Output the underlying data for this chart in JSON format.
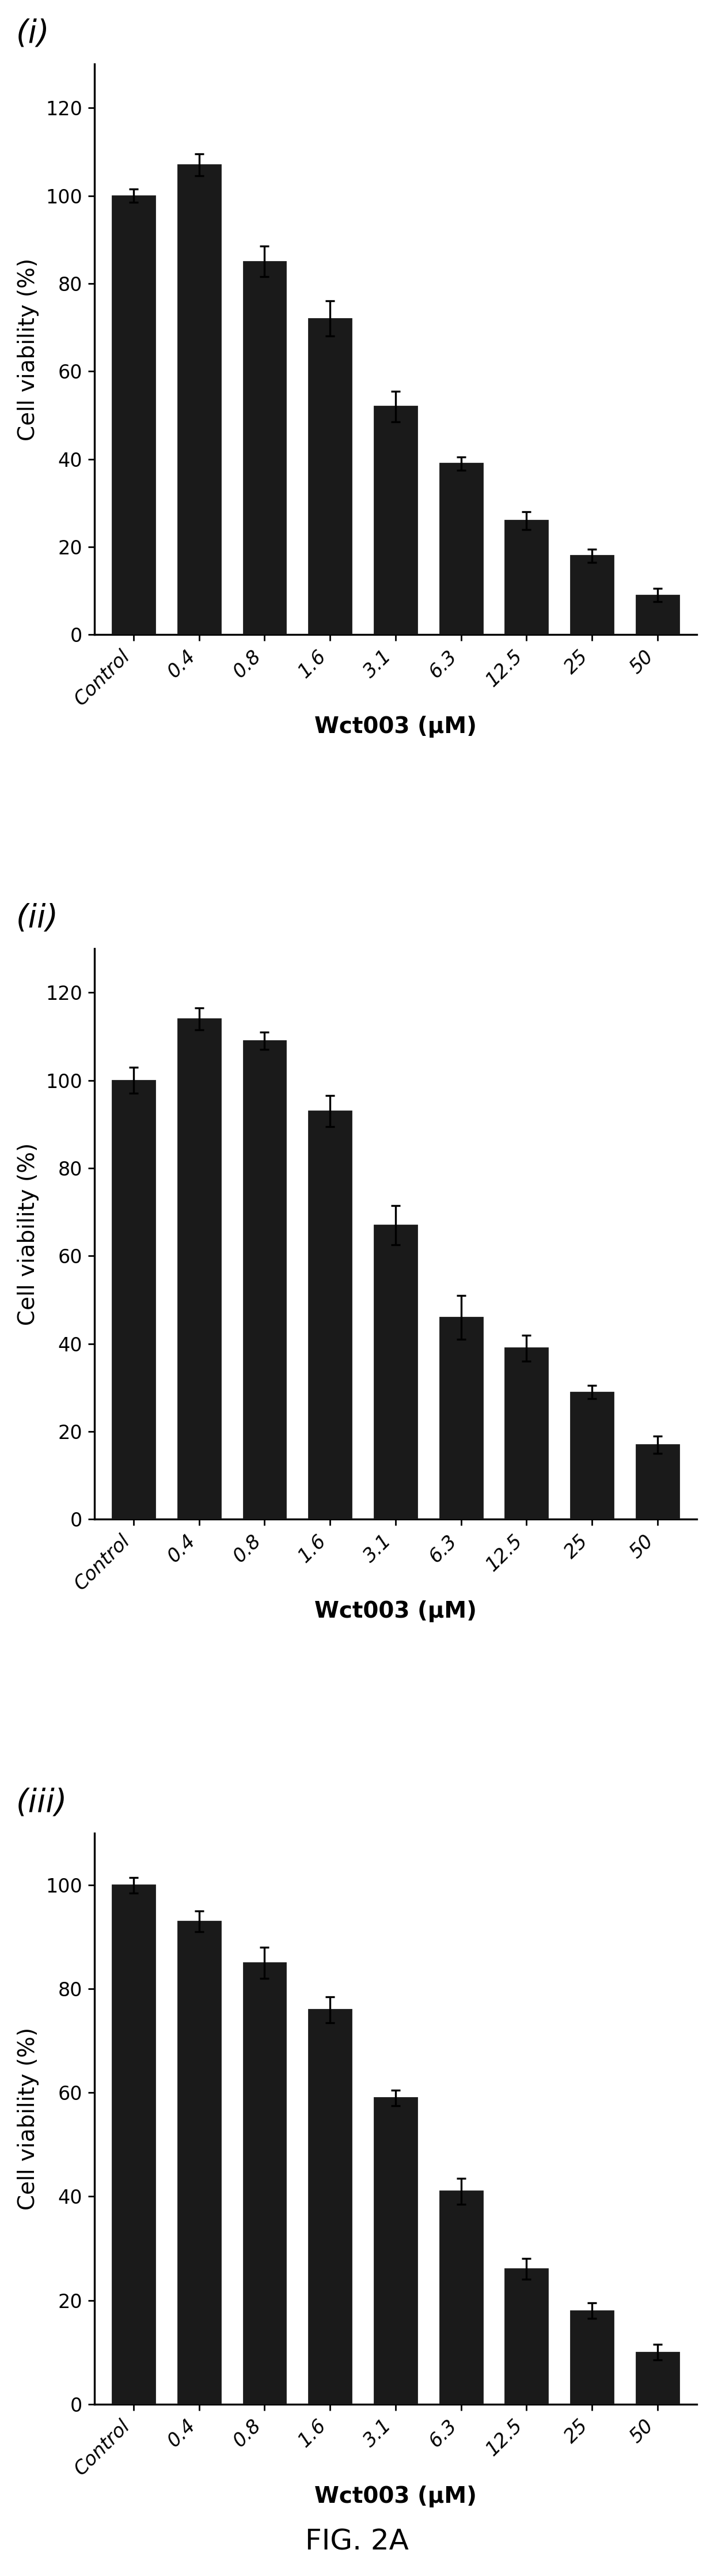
{
  "panels": [
    {
      "label": "(i)",
      "categories": [
        "Control",
        "0.4",
        "0.8",
        "1.6",
        "3.1",
        "6.3",
        "12.5",
        "25",
        "50"
      ],
      "values": [
        100,
        107,
        85,
        72,
        52,
        39,
        26,
        18,
        9
      ],
      "errors": [
        1.5,
        2.5,
        3.5,
        4.0,
        3.5,
        1.5,
        2.0,
        1.5,
        1.5
      ],
      "ylim": [
        0,
        130
      ],
      "yticks": [
        0,
        20,
        40,
        60,
        80,
        100,
        120
      ]
    },
    {
      "label": "(ii)",
      "categories": [
        "Control",
        "0.4",
        "0.8",
        "1.6",
        "3.1",
        "6.3",
        "12.5",
        "25",
        "50"
      ],
      "values": [
        100,
        114,
        109,
        93,
        67,
        46,
        39,
        29,
        17
      ],
      "errors": [
        3.0,
        2.5,
        2.0,
        3.5,
        4.5,
        5.0,
        3.0,
        1.5,
        2.0
      ],
      "ylim": [
        0,
        130
      ],
      "yticks": [
        0,
        20,
        40,
        60,
        80,
        100,
        120
      ]
    },
    {
      "label": "(iii)",
      "categories": [
        "Control",
        "0.4",
        "0.8",
        "1.6",
        "3.1",
        "6.3",
        "12.5",
        "25",
        "50"
      ],
      "values": [
        100,
        93,
        85,
        76,
        59,
        41,
        26,
        18,
        10
      ],
      "errors": [
        1.5,
        2.0,
        3.0,
        2.5,
        1.5,
        2.5,
        2.0,
        1.5,
        1.5
      ],
      "ylim": [
        0,
        110
      ],
      "yticks": [
        0,
        20,
        40,
        60,
        80,
        100
      ]
    }
  ],
  "xlabel": "Wct003 (μM)",
  "ylabel": "Cell viability (%)",
  "bar_color": "#1a1a1a",
  "bar_width": 0.65,
  "figure_caption": "FIG. 2A",
  "background_color": "#ffffff",
  "tick_label_fontsize": 12,
  "axis_label_fontsize": 14,
  "panel_label_fontsize": 20,
  "caption_fontsize": 18
}
